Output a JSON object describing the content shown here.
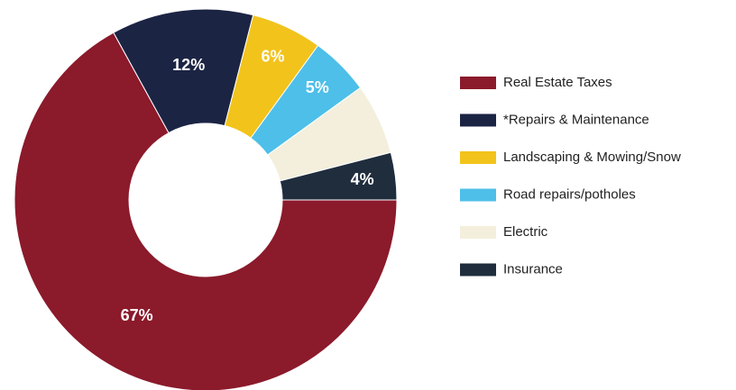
{
  "chart_data": {
    "type": "donut",
    "categories": [
      "Real Estate Taxes",
      "*Repairs & Maintenance",
      "Landscaping & Mowing/Snow",
      "Road repairs/potholes",
      "Electric",
      "Insurance"
    ],
    "values": [
      67,
      12,
      6,
      5,
      6,
      4
    ],
    "value_labels": [
      "67%",
      "12%",
      "6%",
      "5%",
      null,
      "4%"
    ],
    "colors": [
      "#8b1a2b",
      "#1c2444",
      "#f2c31b",
      "#4dbfe9",
      "#f3efdc",
      "#1f2d3d"
    ],
    "legend": "right"
  }
}
